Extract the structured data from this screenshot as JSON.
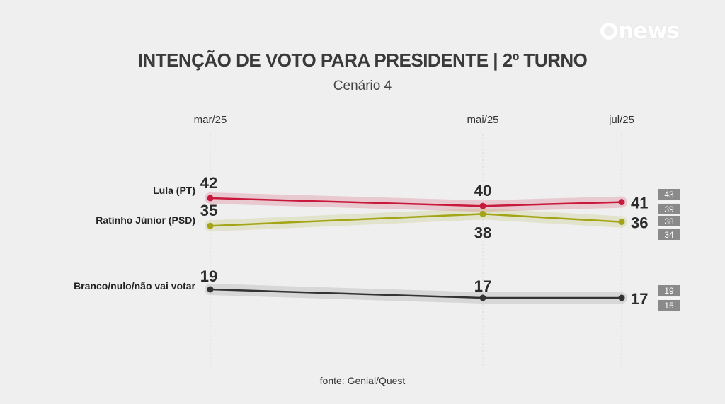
{
  "logo": {
    "text": "news"
  },
  "colors": {
    "lula": "#c8193c",
    "ratinho": "#a4a516",
    "branco": "#333333",
    "range_box": "#8a8a8a",
    "background": "#efefef"
  },
  "chart_data": {
    "type": "line",
    "title": "INTENÇÃO DE VOTO PARA PRESIDENTE | 2º TURNO",
    "subtitle": "Cenário 4",
    "source": "fonte: Genial/Quest",
    "x": [
      "mar/25",
      "mai/25",
      "jul/25"
    ],
    "ylim": [
      10,
      50
    ],
    "grid": "vertical",
    "legend": "inline-left",
    "series": [
      {
        "name": "Lula (PT)",
        "values": [
          42,
          40,
          41
        ],
        "labels": [
          "42",
          "40",
          "41"
        ],
        "range": {
          "high": 43,
          "low": 39,
          "high_label": "43",
          "low_label": "39"
        }
      },
      {
        "name": "Ratinho Júnior (PSD)",
        "values": [
          35,
          38,
          36
        ],
        "labels": [
          "35",
          "38",
          "36"
        ],
        "range": {
          "high": 38,
          "low": 34,
          "high_label": "38",
          "low_label": "34"
        }
      },
      {
        "name": "Branco/nulo/não vai votar",
        "values": [
          19,
          17,
          17
        ],
        "labels": [
          "19",
          "17",
          "17"
        ],
        "range": {
          "high": 19,
          "low": 15,
          "high_label": "19",
          "low_label": "15"
        }
      }
    ]
  }
}
